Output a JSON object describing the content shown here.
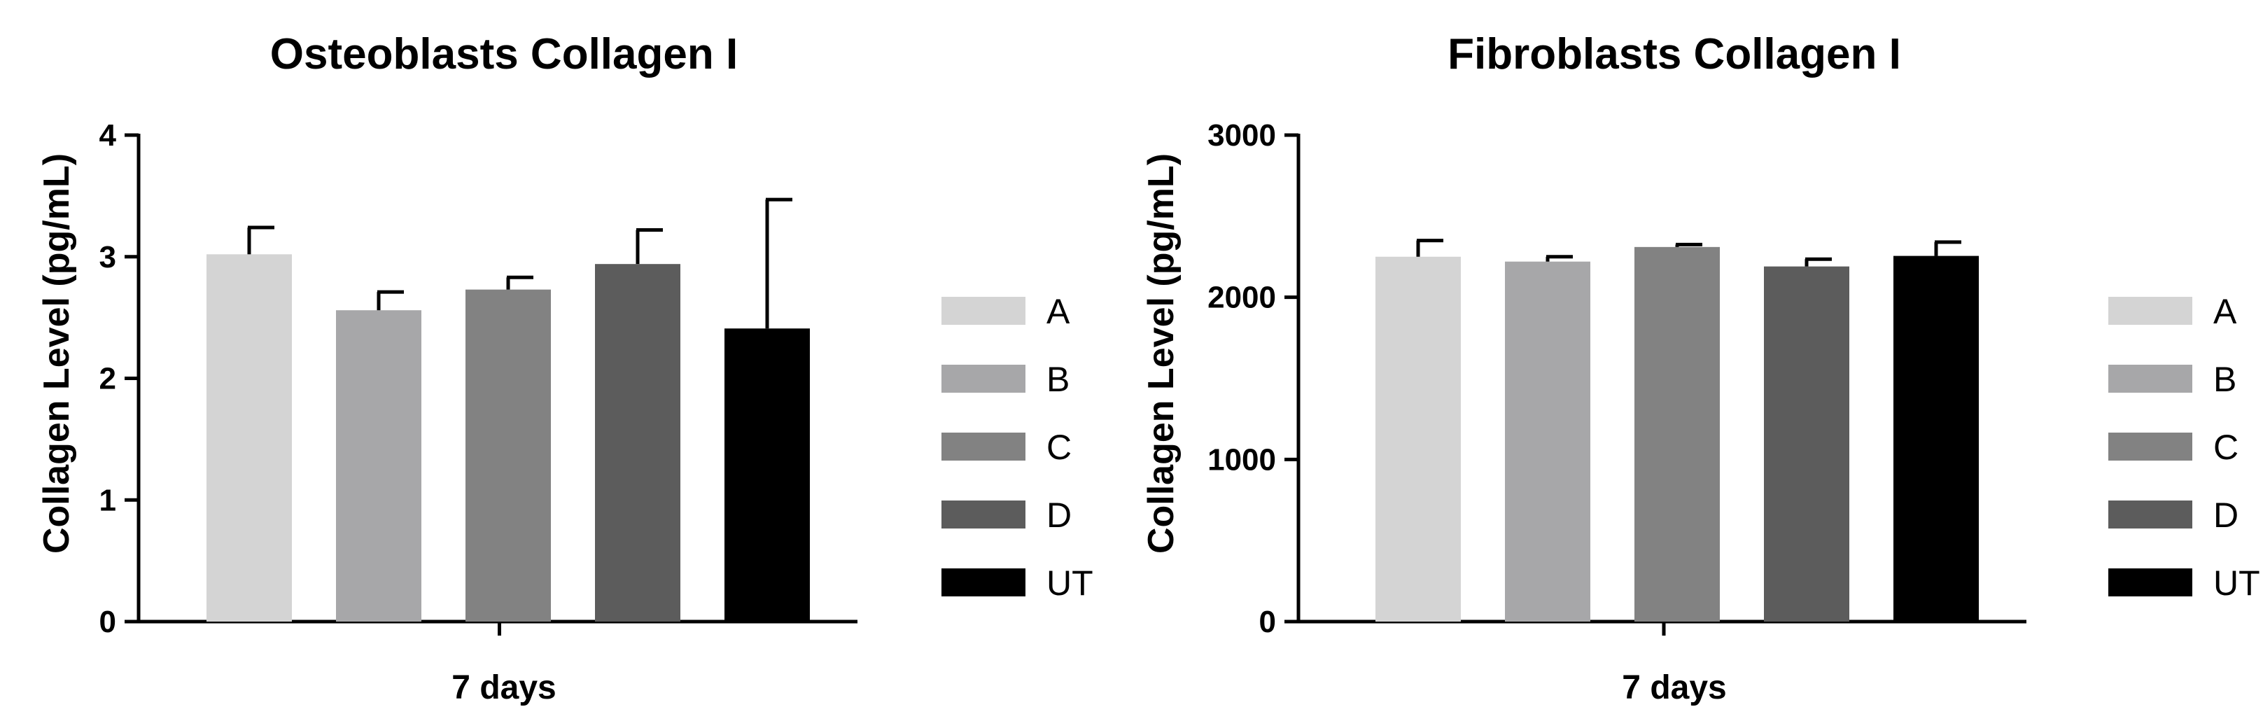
{
  "chart_data": [
    {
      "type": "bar",
      "title": "Osteoblasts Collagen I",
      "xlabel": "7 days",
      "ylabel": "Collagen Level (pg/mL)",
      "ylim": [
        0,
        4
      ],
      "yticks": [
        "0",
        "1",
        "2",
        "3",
        "4"
      ],
      "categories": [
        "A",
        "B",
        "C",
        "D",
        "UT"
      ],
      "values": [
        3.02,
        2.56,
        2.73,
        2.94,
        2.41
      ],
      "errors": [
        0.22,
        0.15,
        0.1,
        0.28,
        1.06
      ],
      "colors": [
        "#d4d4d4",
        "#a7a7a9",
        "#828282",
        "#5c5c5c",
        "#000000"
      ],
      "legend": [
        "A",
        "B",
        "C",
        "D",
        "UT"
      ],
      "legend_position": "right",
      "grid": false
    },
    {
      "type": "bar",
      "title": "Fibroblasts Collagen I",
      "xlabel": "7 days",
      "ylabel": "Collagen Level (pg/mL)",
      "ylim": [
        0,
        3000
      ],
      "yticks": [
        "0",
        "1000",
        "2000",
        "3000"
      ],
      "categories": [
        "A",
        "B",
        "C",
        "D",
        "UT"
      ],
      "values": [
        2250,
        2220,
        2310,
        2190,
        2255
      ],
      "errors": [
        100,
        30,
        15,
        45,
        85
      ],
      "colors": [
        "#d4d4d4",
        "#a7a7a9",
        "#828282",
        "#5c5c5c",
        "#000000"
      ],
      "legend": [
        "A",
        "B",
        "C",
        "D",
        "UT"
      ],
      "legend_position": "right",
      "grid": false
    }
  ]
}
